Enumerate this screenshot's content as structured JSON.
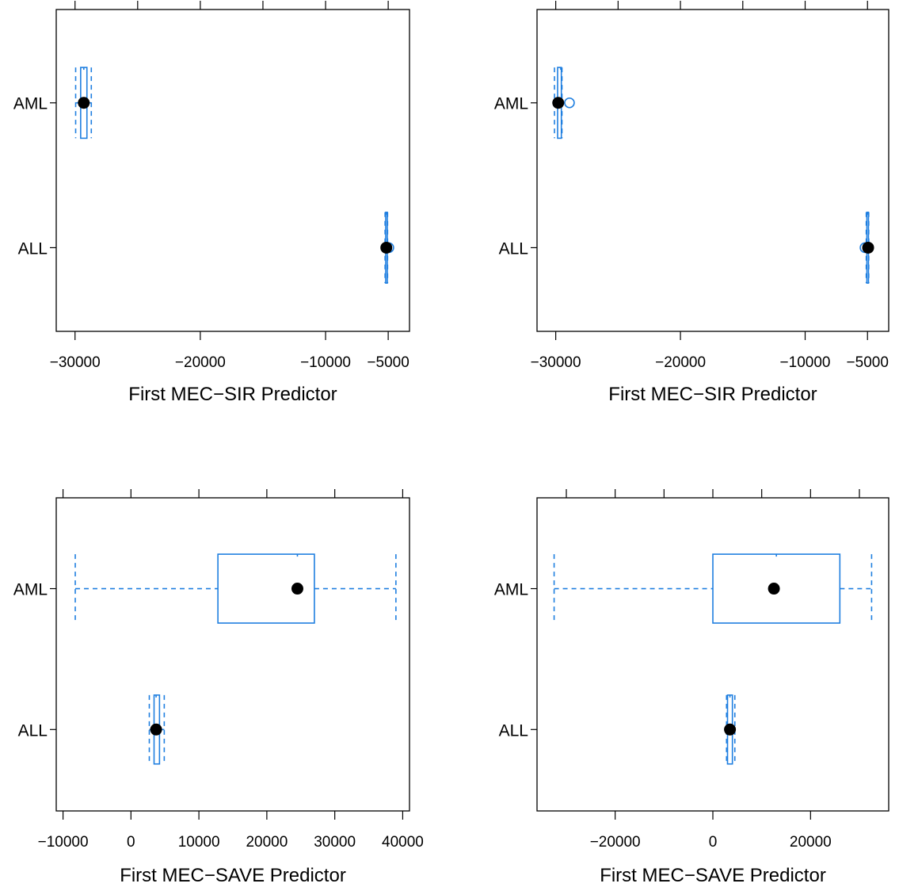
{
  "chart_data": [
    {
      "type": "box",
      "xlabel": "First MEC−SIR Predictor",
      "xlim": [
        -31500,
        -3300
      ],
      "xticks_top": [
        -30000,
        -25000,
        -20000,
        -15000,
        -10000,
        -5000
      ],
      "xticks_bottom": [
        -30000,
        -20000,
        -10000,
        -5000
      ],
      "xtick_labels_bottom": [
        "−30000",
        "−20000",
        "−10000",
        "−5000"
      ],
      "categories": [
        "AML",
        "ALL"
      ],
      "boxes": [
        {
          "group": "AML",
          "whisker_low": -29950,
          "q1": -29550,
          "median": -29300,
          "q3": -29050,
          "whisker_high": -28700,
          "mean": -29300,
          "outliers": []
        },
        {
          "group": "ALL",
          "whisker_low": -5250,
          "q1": -5200,
          "median": -5150,
          "q3": -5100,
          "whisker_high": -5050,
          "mean": -5150,
          "outliers": [
            -4950
          ]
        }
      ]
    },
    {
      "type": "box",
      "xlabel": "First MEC−SIR Predictor",
      "xlim": [
        -31500,
        -3300
      ],
      "xticks_top": [
        -30000,
        -25000,
        -20000,
        -15000,
        -10000,
        -5000
      ],
      "xticks_bottom": [
        -30000,
        -20000,
        -10000,
        -5000
      ],
      "xtick_labels_bottom": [
        "−30000",
        "−20000",
        "−10000",
        "−5000"
      ],
      "categories": [
        "AML",
        "ALL"
      ],
      "boxes": [
        {
          "group": "AML",
          "whisker_low": -30100,
          "q1": -29850,
          "median": -29600,
          "q3": -29550,
          "whisker_high": -29500,
          "mean": -29800,
          "outliers": [
            -28900
          ]
        },
        {
          "group": "ALL",
          "whisker_low": -5100,
          "q1": -5050,
          "median": -5000,
          "q3": -4950,
          "whisker_high": -4900,
          "mean": -4950,
          "outliers": [
            -5200
          ]
        }
      ]
    },
    {
      "type": "box",
      "xlabel": "First MEC−SAVE Predictor",
      "xlim": [
        -11000,
        41000
      ],
      "xticks_top": [
        -10000,
        0,
        10000,
        20000,
        30000,
        40000
      ],
      "xticks_bottom": [
        -10000,
        0,
        10000,
        20000,
        30000,
        40000
      ],
      "xtick_labels_bottom": [
        "−10000",
        "0",
        "10000",
        "20000",
        "30000",
        "40000"
      ],
      "categories": [
        "AML",
        "ALL"
      ],
      "boxes": [
        {
          "group": "AML",
          "whisker_low": -8200,
          "q1": 12800,
          "median": 24500,
          "q3": 27000,
          "whisker_high": 39000,
          "mean": 24500,
          "outliers": []
        },
        {
          "group": "ALL",
          "whisker_low": 2700,
          "q1": 3400,
          "median": 3700,
          "q3": 4200,
          "whisker_high": 4900,
          "mean": 3700,
          "outliers": []
        }
      ]
    },
    {
      "type": "box",
      "xlabel": "First MEC−SAVE Predictor",
      "xlim": [
        -36000,
        36000
      ],
      "xticks_top": [
        -30000,
        -20000,
        -10000,
        0,
        10000,
        20000,
        30000
      ],
      "xticks_bottom": [
        -20000,
        0,
        20000
      ],
      "xtick_labels_bottom": [
        "−20000",
        "0",
        "20000"
      ],
      "categories": [
        "AML",
        "ALL"
      ],
      "boxes": [
        {
          "group": "AML",
          "whisker_low": -32500,
          "q1": 0,
          "median": 13000,
          "q3": 26000,
          "whisker_high": 32500,
          "mean": 12500,
          "outliers": []
        },
        {
          "group": "ALL",
          "whisker_low": 2800,
          "q1": 3000,
          "median": 3500,
          "q3": 4000,
          "whisker_high": 4500,
          "mean": 3500,
          "outliers": []
        }
      ]
    }
  ],
  "colors": {
    "box": "#1f7fe0",
    "mean_point": "#000000",
    "axis": "#000000"
  }
}
